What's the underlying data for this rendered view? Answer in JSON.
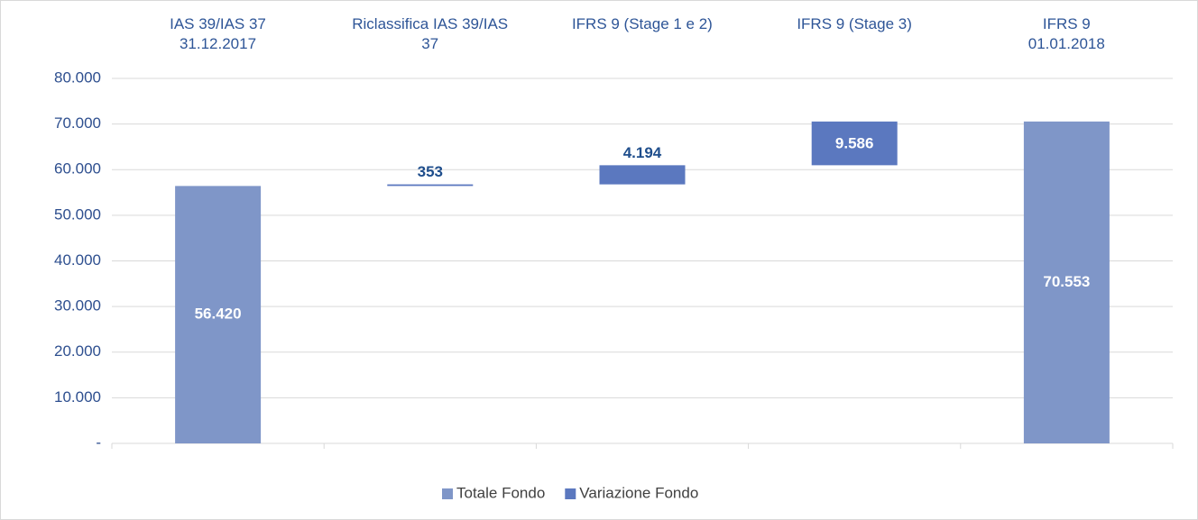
{
  "chart_data": {
    "type": "waterfall",
    "categories": [
      "IAS 39/IAS 37\n31.12.2017",
      "Riclassifica IAS 39/IAS\n37",
      "IFRS 9 (Stage 1 e 2)",
      "IFRS 9 (Stage 3)",
      "IFRS 9\n01.01.2018"
    ],
    "series": [
      {
        "name": "Totale Fondo",
        "color": "#7f96c8",
        "values": [
          56420,
          null,
          null,
          null,
          70553
        ],
        "value_labels": [
          "56.420",
          null,
          null,
          null,
          "70.553"
        ]
      },
      {
        "name": "Variazione Fondo",
        "color": "#5b78bf",
        "values": [
          null,
          353,
          4194,
          9586,
          null
        ],
        "value_labels": [
          null,
          "353",
          "4.194",
          "9.586",
          null
        ]
      }
    ],
    "ylim": [
      0,
      80000
    ],
    "yticks": [
      {
        "value": 0,
        "label": "-"
      },
      {
        "value": 10000,
        "label": "10.000"
      },
      {
        "value": 20000,
        "label": "20.000"
      },
      {
        "value": 30000,
        "label": "30.000"
      },
      {
        "value": 40000,
        "label": "40.000"
      },
      {
        "value": 50000,
        "label": "50.000"
      },
      {
        "value": 60000,
        "label": "60.000"
      },
      {
        "value": 70000,
        "label": "70.000"
      },
      {
        "value": 80000,
        "label": "80.000"
      }
    ],
    "grid": true,
    "legend": "bottom"
  }
}
